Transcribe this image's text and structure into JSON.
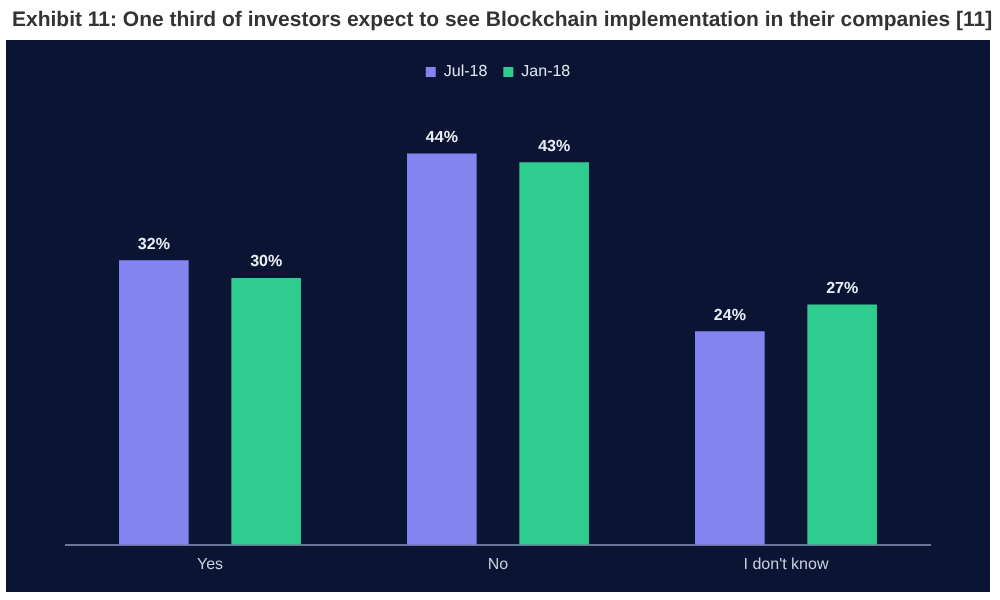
{
  "chart_data": {
    "type": "bar",
    "title": "Exhibit 11: One third of investors expect to see Blockchain implementation in their companies [11]",
    "categories": [
      "Yes",
      "No",
      "I don't know"
    ],
    "series": [
      {
        "name": "Jul-18",
        "color": "#8585f2",
        "values": [
          32,
          44,
          24
        ],
        "value_labels": [
          "32%",
          "44%",
          "24%"
        ]
      },
      {
        "name": "Jan-18",
        "color": "#2ecc8e",
        "values": [
          30,
          43,
          27
        ],
        "value_labels": [
          "30%",
          "43%",
          "27%"
        ]
      }
    ],
    "legend": "top",
    "grid": false
  }
}
